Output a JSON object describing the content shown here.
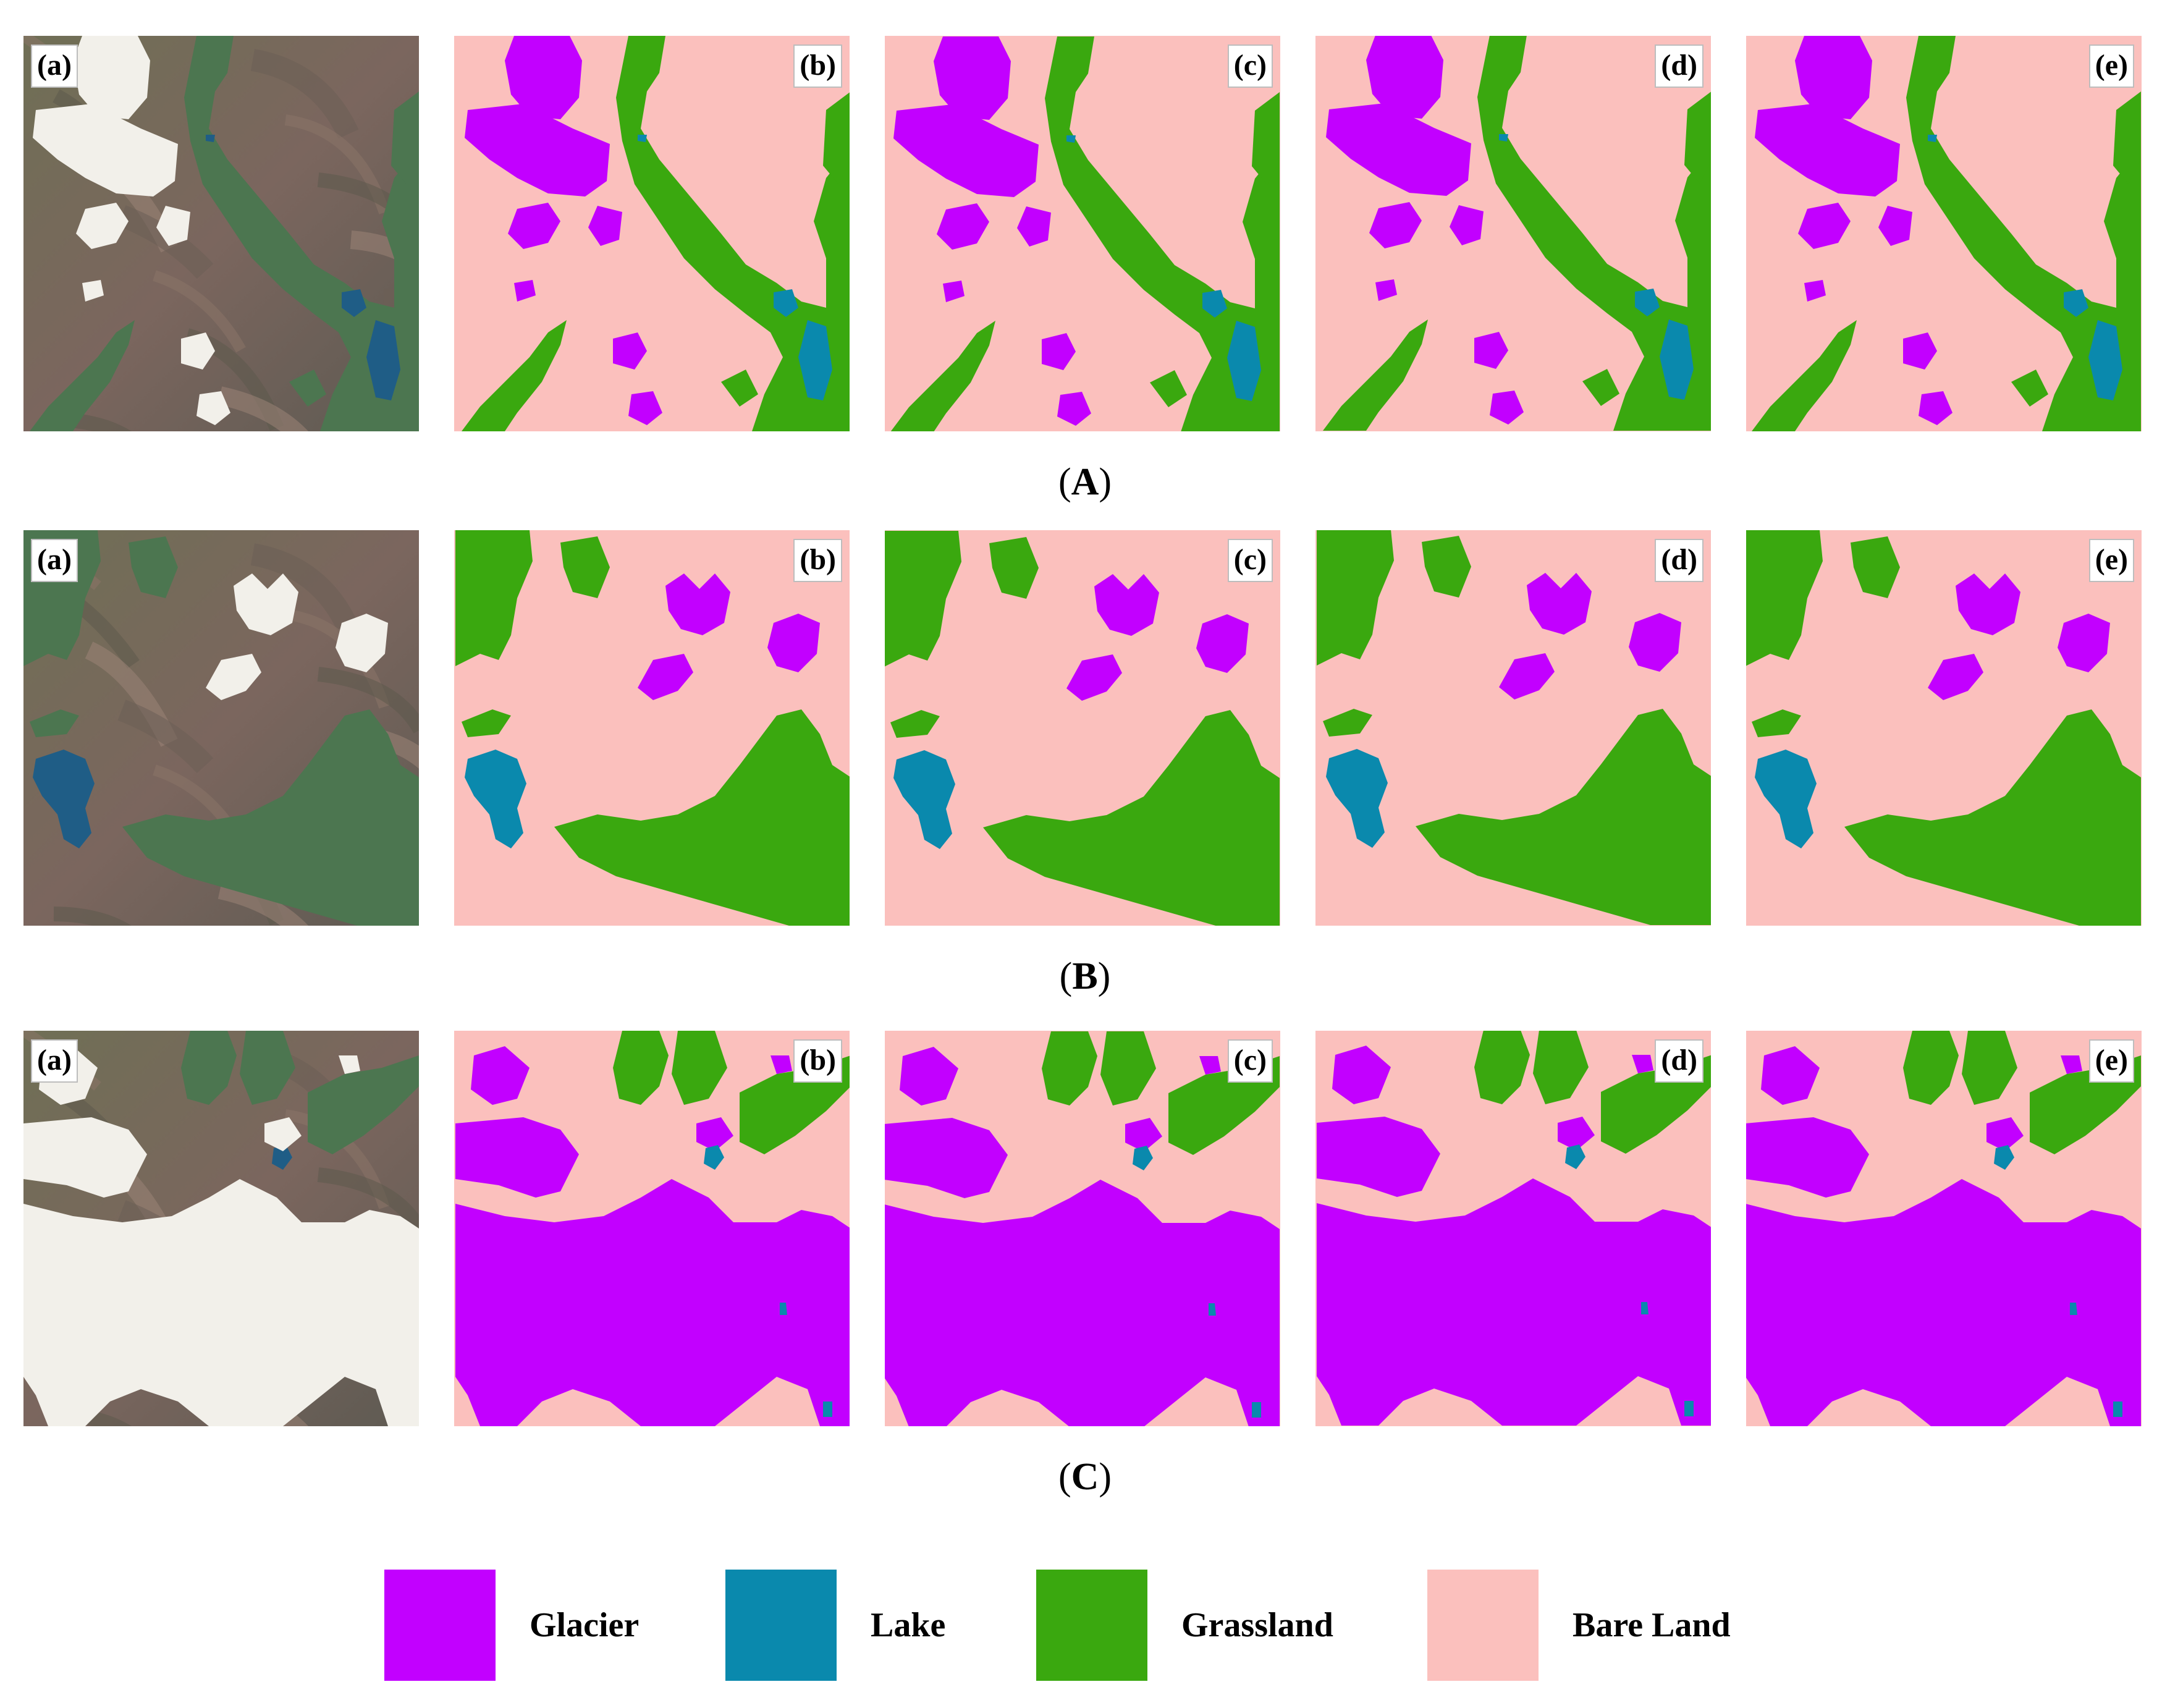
{
  "colors": {
    "glacier": "#c200ff",
    "lake": "#0a89ad",
    "grassland": "#3aa80f",
    "bare_land": "#fbc0bd",
    "satellite_base": "#7a6a60",
    "snow": "#f2f0ea",
    "vegetation": "#4c7650",
    "water": "#1f5d86"
  },
  "panel_labels": [
    "(a)",
    "(b)",
    "(c)",
    "(d)",
    "(e)"
  ],
  "rows": [
    {
      "id": "A",
      "caption_open": "(",
      "caption_letter": "A",
      "caption_close": ")"
    },
    {
      "id": "B",
      "caption_open": "(",
      "caption_letter": "B",
      "caption_close": ")"
    },
    {
      "id": "C",
      "caption_open": "(",
      "caption_letter": "C",
      "caption_close": ")"
    }
  ],
  "legend": [
    {
      "label": "Glacier",
      "class": "glacier"
    },
    {
      "label": "Lake",
      "class": "lake"
    },
    {
      "label": "Grassland",
      "class": "grassland"
    },
    {
      "label": "Bare Land",
      "class": "bare_land"
    }
  ]
}
